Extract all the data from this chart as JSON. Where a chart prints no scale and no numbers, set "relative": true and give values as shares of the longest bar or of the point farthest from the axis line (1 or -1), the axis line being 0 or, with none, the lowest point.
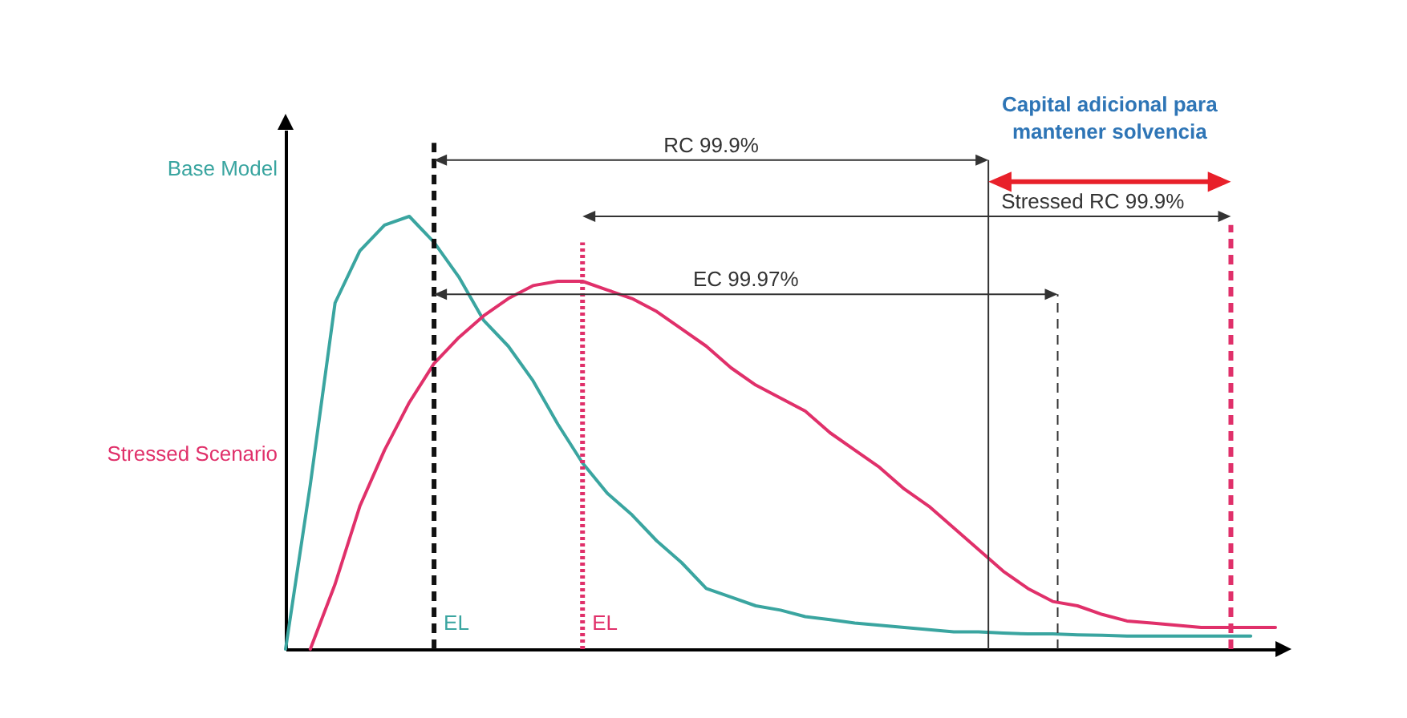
{
  "chart_data": {
    "type": "line",
    "relative": true,
    "legend": false,
    "tick_labels": false,
    "categories": [
      null,
      null,
      null,
      null,
      null,
      null,
      null,
      null,
      null,
      null,
      null,
      null,
      null,
      null,
      null,
      null,
      null,
      null,
      null,
      null,
      null,
      null,
      null,
      null,
      null,
      null,
      null,
      null,
      null,
      null,
      null,
      null,
      null,
      null,
      null,
      null,
      null,
      null,
      null,
      null,
      null
    ],
    "series": [
      {
        "name": "Base Model",
        "color": "#3aa5a0",
        "values": [
          0,
          0.38,
          0.8,
          0.92,
          0.98,
          1,
          0.94,
          0.86,
          0.76,
          0.7,
          0.62,
          0.52,
          0.43,
          0.36,
          0.31,
          0.25,
          0.2,
          0.14,
          0.12,
          0.1,
          0.09,
          0.075,
          0.068,
          0.06,
          0.055,
          0.05,
          0.045,
          0.04,
          0.04,
          0.037,
          0.035,
          0.035,
          0.033,
          0.032,
          0.03,
          0.03,
          0.03,
          0.03,
          0.03,
          0.03,
          null
        ]
      },
      {
        "name": "Stressed Scenario",
        "color": "#e0306a",
        "values": [
          null,
          0,
          0.15,
          0.33,
          0.46,
          0.57,
          0.66,
          0.72,
          0.77,
          0.81,
          0.84,
          0.85,
          0.85,
          0.83,
          0.81,
          0.78,
          0.74,
          0.7,
          0.65,
          0.61,
          0.58,
          0.55,
          0.5,
          0.46,
          0.42,
          0.37,
          0.33,
          0.28,
          0.23,
          0.18,
          0.14,
          0.11,
          0.1,
          0.08,
          0.065,
          0.06,
          0.055,
          0.05,
          0.05,
          0.05,
          0.05
        ]
      }
    ],
    "annotations": [
      "RC 99.9%",
      "Stressed RC 99.9%",
      "EC 99.97%",
      "Capital adicional para mantener solvencia",
      "EL",
      "EL"
    ]
  }
}
